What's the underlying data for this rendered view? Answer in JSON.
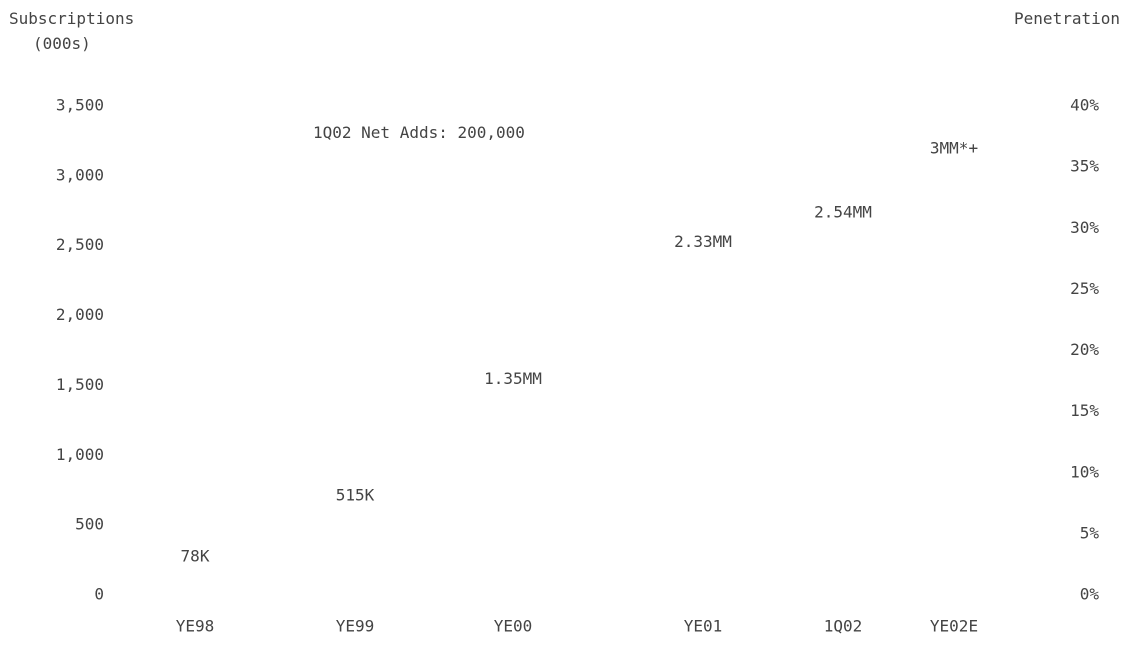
{
  "chart_data": {
    "type": "table",
    "left_axis_title": "Subscriptions",
    "left_axis_unit": "(000s)",
    "right_axis_title": "Penetration",
    "annotation": "1Q02 Net Adds: 200,000",
    "left_axis": {
      "ticks": [
        "0",
        "500",
        "1,000",
        "1,500",
        "2,000",
        "2,500",
        "3,000",
        "3,500"
      ],
      "values": [
        0,
        500,
        1000,
        1500,
        2000,
        2500,
        3000,
        3500
      ]
    },
    "right_axis": {
      "ticks": [
        "0%",
        "5%",
        "10%",
        "15%",
        "20%",
        "25%",
        "30%",
        "35%",
        "40%"
      ],
      "values": [
        0,
        5,
        10,
        15,
        20,
        25,
        30,
        35,
        40
      ]
    },
    "categories": [
      "YE98",
      "YE99",
      "YE00",
      "YE01",
      "1Q02",
      "YE02E"
    ],
    "series": [
      {
        "labels": [
          "78K",
          "515K",
          "1.35MM",
          "2.33MM",
          "2.54MM",
          "3MM*+"
        ],
        "values": [
          78,
          515,
          1350,
          2330,
          2540,
          3000
        ]
      }
    ]
  }
}
